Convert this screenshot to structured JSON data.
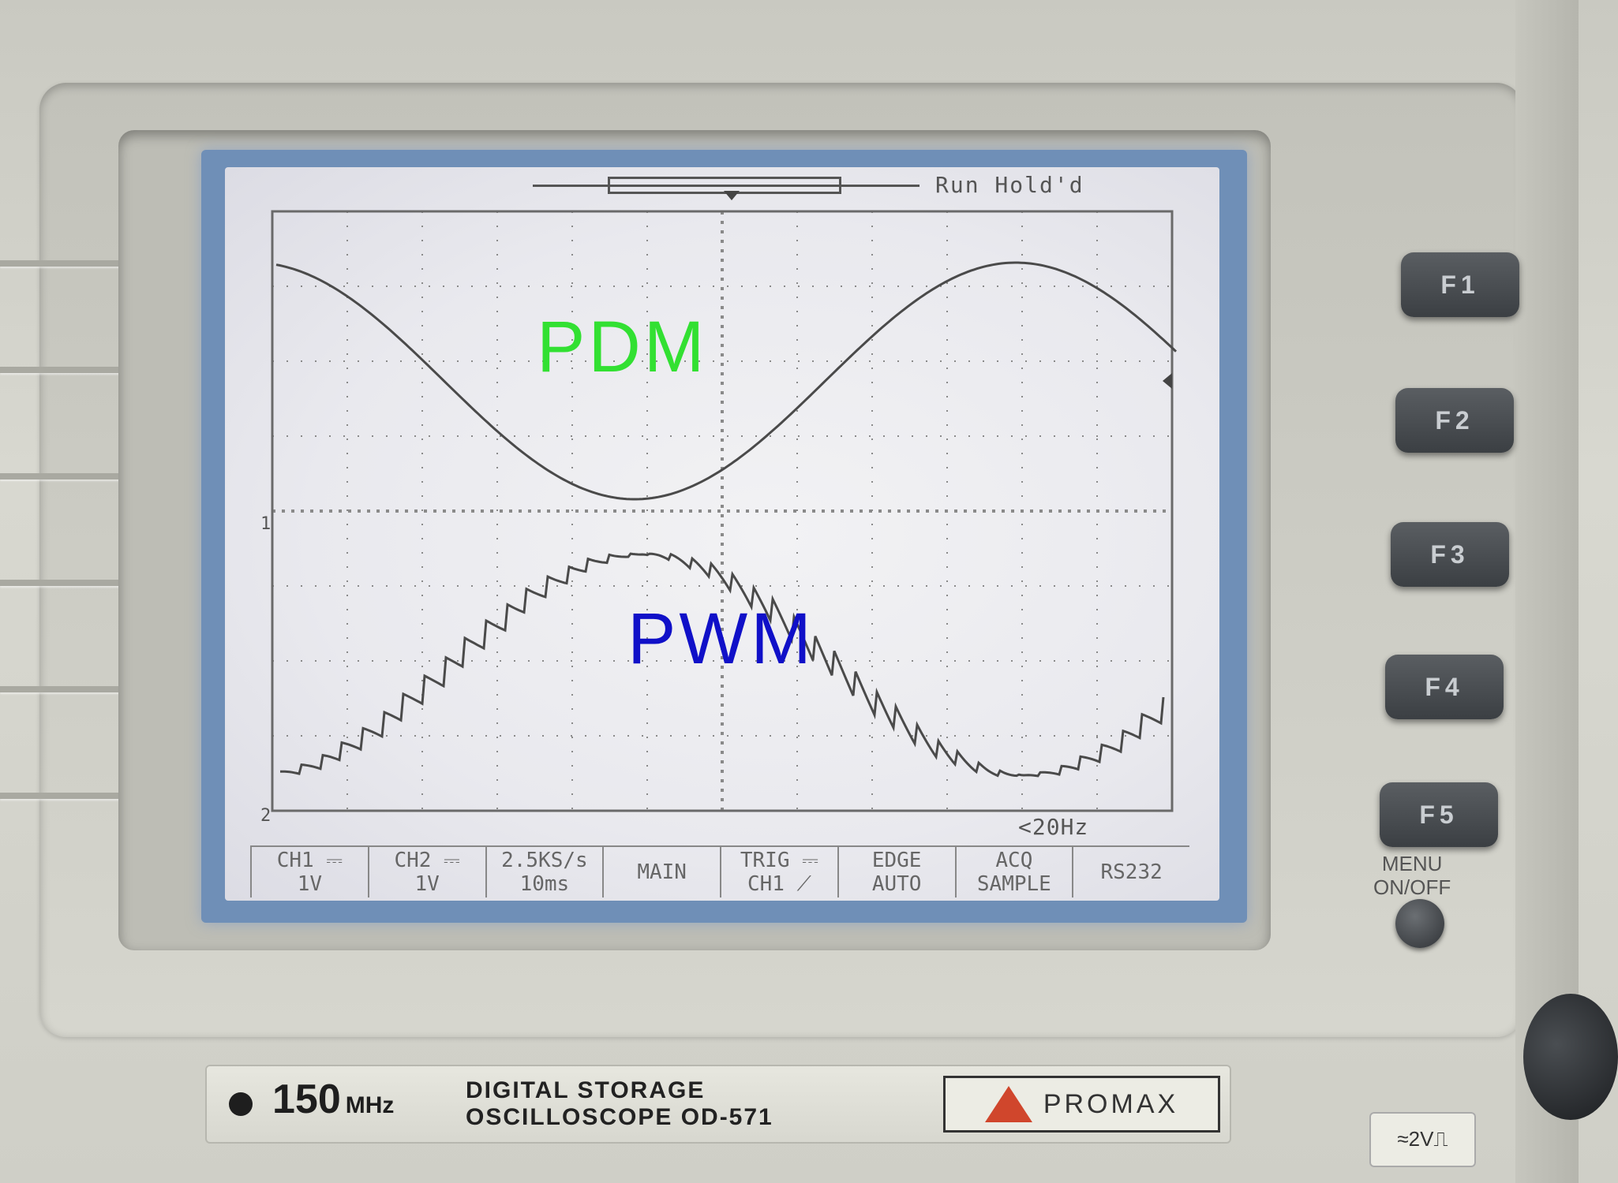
{
  "screen": {
    "status": "Run Hold'd",
    "filter": "<20Hz",
    "overlay_labels": {
      "top": "PDM",
      "bottom": "PWM"
    },
    "channel_markers": {
      "ch1": "1",
      "ch2": "2"
    },
    "menu": [
      {
        "top": "CH1 ⎓",
        "bottom": "1V"
      },
      {
        "top": "CH2 ⎓",
        "bottom": "1V"
      },
      {
        "top": "2.5KS/s",
        "bottom": "10ms"
      },
      {
        "top": "MAIN",
        "bottom": ""
      },
      {
        "top": "TRIG ⎓",
        "bottom": "CH1 ⟋"
      },
      {
        "top": "EDGE",
        "bottom": "AUTO"
      },
      {
        "top": "ACQ",
        "bottom": "SAMPLE"
      },
      {
        "top": "RS232",
        "bottom": ""
      }
    ]
  },
  "function_keys": [
    "F1",
    "F2",
    "F3",
    "F4",
    "F5"
  ],
  "menu_toggle": {
    "line1": "MENU",
    "line2": "ON/OFF"
  },
  "nameplate": {
    "bandwidth": "150",
    "bandwidth_unit": "MHz",
    "line1": "DIGITAL STORAGE",
    "line2": "OSCILLOSCOPE OD-571",
    "brand": "PROMAX"
  },
  "probe_label": "≈2V⎍",
  "colors": {
    "pdm_label": "#32e032",
    "pwm_label": "#1010c8",
    "trace": "#4a4a4a",
    "screen_frame": "#6f8fb7"
  }
}
